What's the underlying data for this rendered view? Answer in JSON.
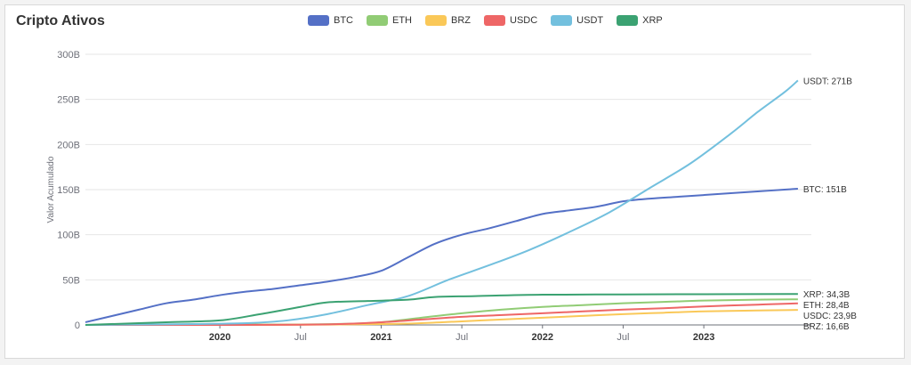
{
  "header": {
    "title": "Cripto Ativos"
  },
  "chart_data": {
    "type": "line",
    "title": "Cripto Ativos",
    "ylabel": "Valor Acumulado",
    "xlabel": "",
    "ylim": [
      0,
      300
    ],
    "yunit": "B",
    "grid": "horizontal",
    "legend_position": "top",
    "y_ticks": [
      "0",
      "50B",
      "100B",
      "150B",
      "200B",
      "250B",
      "300B"
    ],
    "x_range": [
      "2019-03",
      "2023-09"
    ],
    "x_ticks": [
      {
        "date": "2020-01",
        "label": "2020",
        "bold": true
      },
      {
        "date": "2020-07",
        "label": "Jul",
        "bold": false
      },
      {
        "date": "2021-01",
        "label": "2021",
        "bold": true
      },
      {
        "date": "2021-07",
        "label": "Jul",
        "bold": false
      },
      {
        "date": "2022-01",
        "label": "2022",
        "bold": true
      },
      {
        "date": "2022-07",
        "label": "Jul",
        "bold": false
      },
      {
        "date": "2023-01",
        "label": "2023",
        "bold": true
      }
    ],
    "series": [
      {
        "name": "BTC",
        "color": "#5470c6",
        "end_label": "BTC: 151B",
        "x": [
          "2019-03",
          "2019-05",
          "2019-07",
          "2019-09",
          "2019-11",
          "2020-01",
          "2020-03",
          "2020-05",
          "2020-07",
          "2020-09",
          "2020-11",
          "2021-01",
          "2021-03",
          "2021-05",
          "2021-07",
          "2021-09",
          "2021-11",
          "2022-01",
          "2022-03",
          "2022-05",
          "2022-07",
          "2022-09",
          "2022-11",
          "2023-01",
          "2023-03",
          "2023-05",
          "2023-07",
          "2023-08"
        ],
        "y": [
          3,
          10,
          17,
          24,
          28,
          33,
          37,
          40,
          44,
          48,
          53,
          60,
          75,
          90,
          100,
          107,
          115,
          123,
          127,
          131,
          137,
          140,
          142,
          144,
          146,
          148,
          150,
          151
        ]
      },
      {
        "name": "ETH",
        "color": "#91cc75",
        "end_label": "ETH: 28,4B",
        "x": [
          "2019-03",
          "2020-01",
          "2020-07",
          "2020-11",
          "2021-01",
          "2021-04",
          "2021-07",
          "2021-10",
          "2022-01",
          "2022-04",
          "2022-07",
          "2022-10",
          "2023-01",
          "2023-05",
          "2023-08"
        ],
        "y": [
          0,
          0.3,
          0.5,
          1.5,
          3,
          8,
          13,
          17,
          20,
          22,
          24,
          25.5,
          27,
          28,
          28.4
        ]
      },
      {
        "name": "BRZ",
        "color": "#fac858",
        "end_label": "BRZ: 16,6B",
        "x": [
          "2019-03",
          "2020-01",
          "2020-07",
          "2021-01",
          "2021-04",
          "2021-07",
          "2021-10",
          "2022-01",
          "2022-04",
          "2022-07",
          "2022-10",
          "2023-01",
          "2023-05",
          "2023-08"
        ],
        "y": [
          0,
          0,
          0.2,
          1,
          2,
          4,
          6,
          8,
          10,
          12,
          13.5,
          15,
          16,
          16.6
        ]
      },
      {
        "name": "USDC",
        "color": "#ee6666",
        "end_label": "USDC: 23,9B",
        "x": [
          "2019-03",
          "2020-01",
          "2020-07",
          "2020-10",
          "2021-01",
          "2021-04",
          "2021-07",
          "2021-10",
          "2022-01",
          "2022-04",
          "2022-07",
          "2022-10",
          "2023-01",
          "2023-05",
          "2023-08"
        ],
        "y": [
          0,
          0,
          0.3,
          1,
          3,
          6,
          9,
          11,
          13,
          15,
          17,
          18.5,
          20.5,
          22.5,
          23.9
        ]
      },
      {
        "name": "USDT",
        "color": "#73c0de",
        "end_label": "USDT: 271B",
        "x": [
          "2019-03",
          "2019-07",
          "2019-11",
          "2020-03",
          "2020-06",
          "2020-09",
          "2020-12",
          "2021-03",
          "2021-06",
          "2021-09",
          "2021-12",
          "2022-03",
          "2022-06",
          "2022-09",
          "2022-12",
          "2023-03",
          "2023-05",
          "2023-07",
          "2023-08"
        ],
        "y": [
          0,
          0.5,
          1,
          2,
          5,
          12,
          22,
          32,
          50,
          66,
          83,
          103,
          125,
          152,
          179,
          212,
          236,
          258,
          271
        ]
      },
      {
        "name": "XRP",
        "color": "#3ba272",
        "end_label": "XRP: 34,3B",
        "x": [
          "2019-03",
          "2019-06",
          "2019-09",
          "2020-01",
          "2020-04",
          "2020-07",
          "2020-09",
          "2020-12",
          "2021-03",
          "2021-05",
          "2021-08",
          "2022-01",
          "2022-07",
          "2023-01",
          "2023-08"
        ],
        "y": [
          0,
          1.5,
          3,
          5,
          12,
          20,
          25,
          26.5,
          28,
          31,
          32,
          33.5,
          33.8,
          34.1,
          34.3
        ]
      }
    ]
  }
}
